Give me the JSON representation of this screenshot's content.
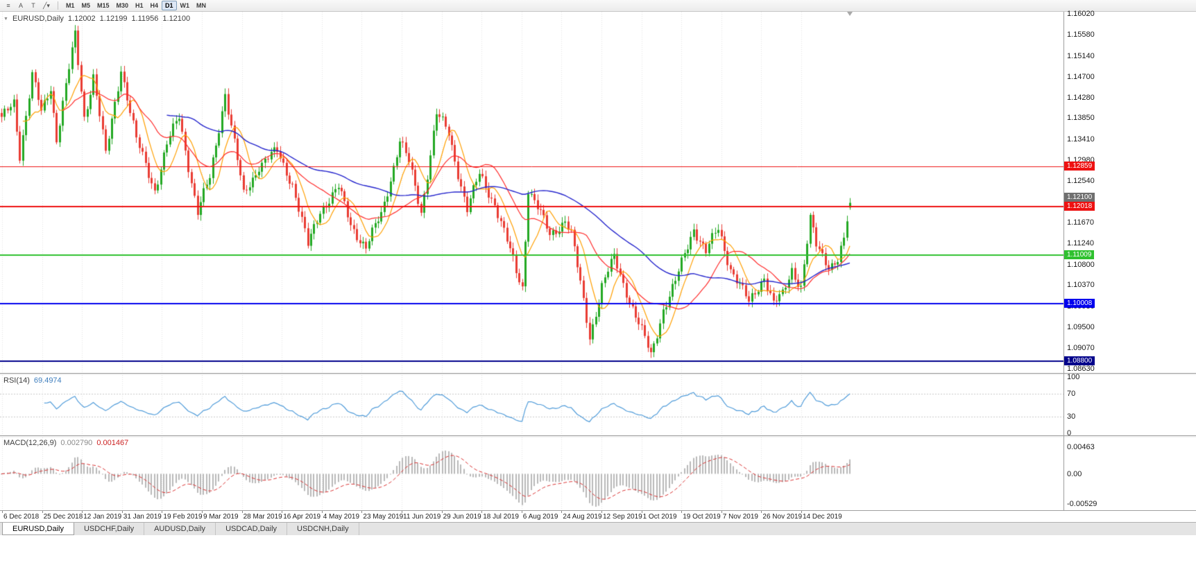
{
  "toolbar": {
    "tools": [
      {
        "name": "objects-list",
        "glyph": "≡"
      },
      {
        "name": "cursor-mode",
        "glyph": "A"
      },
      {
        "name": "text-tool",
        "glyph": "T"
      },
      {
        "name": "line-tools",
        "glyph": "╱▾"
      }
    ],
    "timeframes": [
      "M1",
      "M5",
      "M15",
      "M30",
      "H1",
      "H4",
      "D1",
      "W1",
      "MN"
    ],
    "active_timeframe": "D1"
  },
  "chart": {
    "title": "EURUSD,Daily",
    "open": "1.12002",
    "high": "1.12199",
    "low": "1.11956",
    "close": "1.12100",
    "bid_label": "1.12100",
    "axis_labels": [
      "1.16020",
      "1.15580",
      "1.15140",
      "1.14700",
      "1.14280",
      "1.13850",
      "1.13410",
      "1.12980",
      "1.12540",
      "1.12100",
      "1.11670",
      "1.11240",
      "1.10800",
      "1.10370",
      "1.09930",
      "1.09500",
      "1.09070",
      "1.08630"
    ],
    "colors": {
      "up": "#22a822",
      "down": "#e93b32",
      "ma_fast": "#ff9f00",
      "ma_mid": "#ff2a2a",
      "ma_slow": "#2323cc",
      "grid": "#e2e2e2"
    }
  },
  "hlines": [
    {
      "price": 1.12859,
      "label": "1.12859",
      "color": "#ee1111",
      "width": 1
    },
    {
      "price": 1.12018,
      "label": "1.12018",
      "color": "#ee1111",
      "width": 2
    },
    {
      "price": 1.11009,
      "label": "1.11009",
      "color": "#2fc12f",
      "width": 2
    },
    {
      "price": 1.10008,
      "label": "1.10008",
      "color": "#0000ee",
      "width": 2
    },
    {
      "price": 1.088,
      "label": "1.08800",
      "color": "#00008b",
      "width": 2
    }
  ],
  "rsi": {
    "name": "RSI(14)",
    "value": "69.4974",
    "period": 14,
    "levels": [
      100,
      70,
      30,
      0
    ],
    "color": "#4f9bd9"
  },
  "macd": {
    "name": "MACD(12,26,9)",
    "value1": "0.002790",
    "value2": "0.001467",
    "fast": 12,
    "slow": 26,
    "signal": 9,
    "axis_labels": [
      "0.00463",
      "0.00",
      "-0.00529"
    ],
    "hist_color": "#b8b8b8",
    "signal_color": "#d93030"
  },
  "time_axis": [
    "6 Dec 2018",
    "25 Dec 2018",
    "12 Jan 2019",
    "31 Jan 2019",
    "19 Feb 2019",
    "9 Mar 2019",
    "28 Mar 2019",
    "16 Apr 2019",
    "4 May 2019",
    "23 May 2019",
    "11 Jun 2019",
    "29 Jun 2019",
    "18 Jul 2019",
    "6 Aug 2019",
    "24 Aug 2019",
    "12 Sep 2019",
    "1 Oct 2019",
    "19 Oct 2019",
    "7 Nov 2019",
    "26 Nov 2019",
    "14 Dec 2019"
  ],
  "tabs": [
    {
      "label": "EURUSD,Daily",
      "active": true
    },
    {
      "label": "USDCHF,Daily",
      "active": false
    },
    {
      "label": "AUDUSD,Daily",
      "active": false
    },
    {
      "label": "USDCAD,Daily",
      "active": false
    },
    {
      "label": "USDCNH,Daily",
      "active": false
    }
  ],
  "chart_data": {
    "type": "candlestick",
    "symbol": "EURUSD",
    "timeframe": "D1",
    "bars_total": 278,
    "ylim": [
      1.0863,
      1.1602
    ],
    "current_bar": {
      "open": 1.12002,
      "high": 1.12199,
      "low": 1.11956,
      "close": 1.121
    },
    "horizontal_levels": [
      1.12859,
      1.12018,
      1.11009,
      1.10008,
      1.088
    ],
    "price_path_keypoints": [
      [
        0,
        1.1378
      ],
      [
        4,
        1.1418
      ],
      [
        6,
        1.1308
      ],
      [
        10,
        1.1468
      ],
      [
        13,
        1.1392
      ],
      [
        16,
        1.145
      ],
      [
        18,
        1.1342
      ],
      [
        24,
        1.1558
      ],
      [
        27,
        1.1392
      ],
      [
        30,
        1.1478
      ],
      [
        34,
        1.1312
      ],
      [
        39,
        1.1498
      ],
      [
        44,
        1.1342
      ],
      [
        50,
        1.124
      ],
      [
        54,
        1.1328
      ],
      [
        58,
        1.1386
      ],
      [
        64,
        1.1185
      ],
      [
        68,
        1.1255
      ],
      [
        73,
        1.1438
      ],
      [
        79,
        1.1224
      ],
      [
        84,
        1.1292
      ],
      [
        90,
        1.132
      ],
      [
        95,
        1.1256
      ],
      [
        100,
        1.1122
      ],
      [
        104,
        1.1198
      ],
      [
        110,
        1.1238
      ],
      [
        114,
        1.1162
      ],
      [
        119,
        1.1112
      ],
      [
        124,
        1.118
      ],
      [
        130,
        1.1338
      ],
      [
        133,
        1.129
      ],
      [
        137,
        1.1194
      ],
      [
        142,
        1.1398
      ],
      [
        146,
        1.1358
      ],
      [
        152,
        1.1202
      ],
      [
        156,
        1.127
      ],
      [
        161,
        1.1212
      ],
      [
        168,
        1.1062
      ],
      [
        170,
        1.1032
      ],
      [
        172,
        1.1238
      ],
      [
        179,
        1.1136
      ],
      [
        184,
        1.1174
      ],
      [
        186,
        1.1142
      ],
      [
        192,
        1.0934
      ],
      [
        196,
        1.104
      ],
      [
        200,
        1.1098
      ],
      [
        205,
        1.1016
      ],
      [
        208,
        1.0962
      ],
      [
        212,
        1.0894
      ],
      [
        216,
        1.0992
      ],
      [
        220,
        1.1042
      ],
      [
        226,
        1.1156
      ],
      [
        230,
        1.1102
      ],
      [
        234,
        1.115
      ],
      [
        238,
        1.1072
      ],
      [
        244,
        1.0998
      ],
      [
        249,
        1.1062
      ],
      [
        252,
        1.1002
      ],
      [
        255,
        1.102
      ],
      [
        258,
        1.1078
      ],
      [
        261,
        1.1042
      ],
      [
        264,
        1.1178
      ],
      [
        266,
        1.1122
      ],
      [
        270,
        1.1084
      ],
      [
        273,
        1.1094
      ],
      [
        275,
        1.1128
      ],
      [
        276,
        1.1168
      ],
      [
        277,
        1.121
      ]
    ],
    "wiggle": [
      0.0007,
      0.0009,
      0.0005
    ],
    "ma_windows": {
      "fast": 8,
      "mid": 21,
      "slow": 55
    },
    "macd_range": [
      -0.006,
      0.006
    ]
  }
}
